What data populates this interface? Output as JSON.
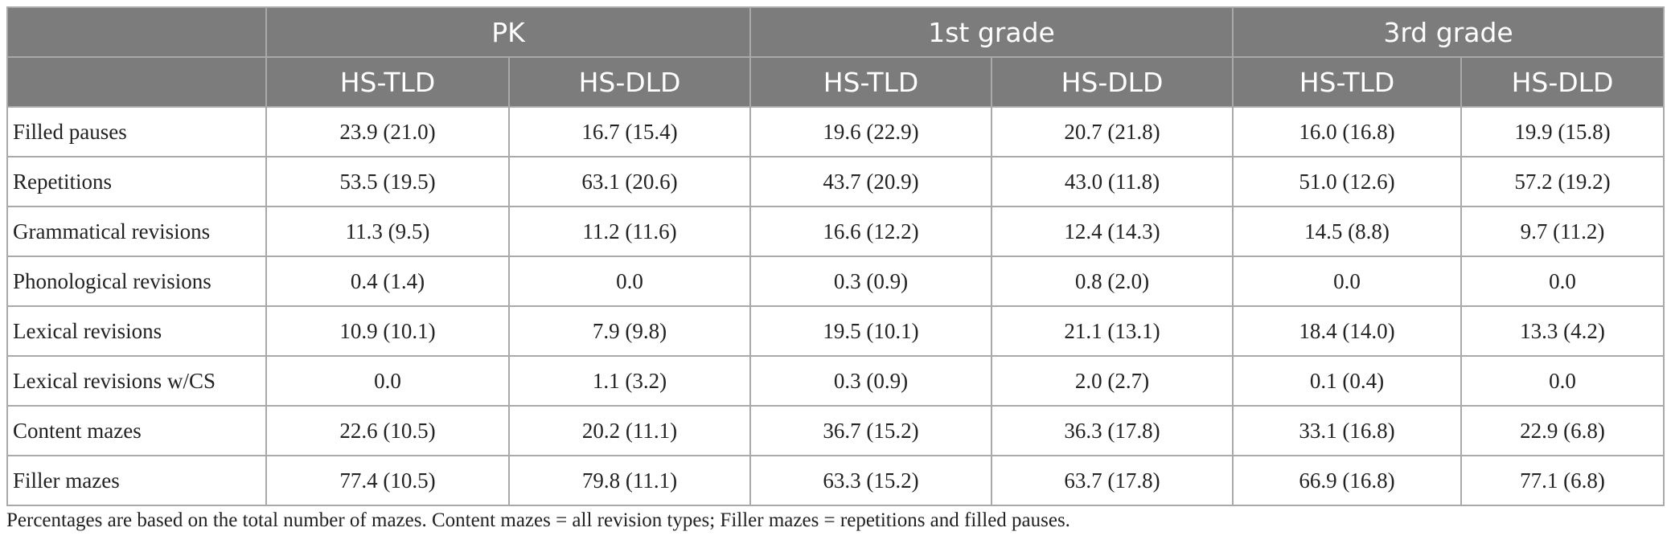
{
  "table": {
    "groups": [
      "PK",
      "1st grade",
      "3rd grade"
    ],
    "subheaders": [
      "HS-TLD",
      "HS-DLD",
      "HS-TLD",
      "HS-DLD",
      "HS-TLD",
      "HS-DLD"
    ],
    "rows": [
      {
        "label": "Filled pauses",
        "cells": [
          "23.9 (21.0)",
          "16.7 (15.4)",
          "19.6 (22.9)",
          "20.7 (21.8)",
          "16.0 (16.8)",
          "19.9 (15.8)"
        ]
      },
      {
        "label": "Repetitions",
        "cells": [
          "53.5 (19.5)",
          "63.1 (20.6)",
          "43.7 (20.9)",
          "43.0 (11.8)",
          "51.0 (12.6)",
          "57.2 (19.2)"
        ]
      },
      {
        "label": "Grammatical revisions",
        "cells": [
          "11.3 (9.5)",
          "11.2 (11.6)",
          "16.6 (12.2)",
          "12.4 (14.3)",
          "14.5 (8.8)",
          "9.7 (11.2)"
        ]
      },
      {
        "label": "Phonological revisions",
        "cells": [
          "0.4 (1.4)",
          "0.0",
          "0.3 (0.9)",
          "0.8 (2.0)",
          "0.0",
          "0.0"
        ]
      },
      {
        "label": "Lexical revisions",
        "cells": [
          "10.9 (10.1)",
          "7.9 (9.8)",
          "19.5 (10.1)",
          "21.1 (13.1)",
          "18.4 (14.0)",
          "13.3 (4.2)"
        ]
      },
      {
        "label": "Lexical revisions w/CS",
        "cells": [
          "0.0",
          "1.1 (3.2)",
          "0.3 (0.9)",
          "2.0 (2.7)",
          "0.1 (0.4)",
          "0.0"
        ]
      },
      {
        "label": "Content mazes",
        "cells": [
          "22.6 (10.5)",
          "20.2 (11.1)",
          "36.7 (15.2)",
          "36.3 (17.8)",
          "33.1 (16.8)",
          "22.9 (6.8)"
        ]
      },
      {
        "label": "Filler mazes",
        "cells": [
          "77.4 (10.5)",
          "79.8 (11.1)",
          "63.3 (15.2)",
          "63.7 (17.8)",
          "66.9 (16.8)",
          "77.1 (6.8)"
        ]
      }
    ]
  },
  "note": "Percentages are based on the total number of mazes. Content mazes = all revision types; Filler mazes = repetitions and filled pauses.",
  "colors": {
    "header_bg": "#7c7c7c",
    "header_text": "#ffffff",
    "grid": "#a9a9a9",
    "body_text": "#222222"
  }
}
